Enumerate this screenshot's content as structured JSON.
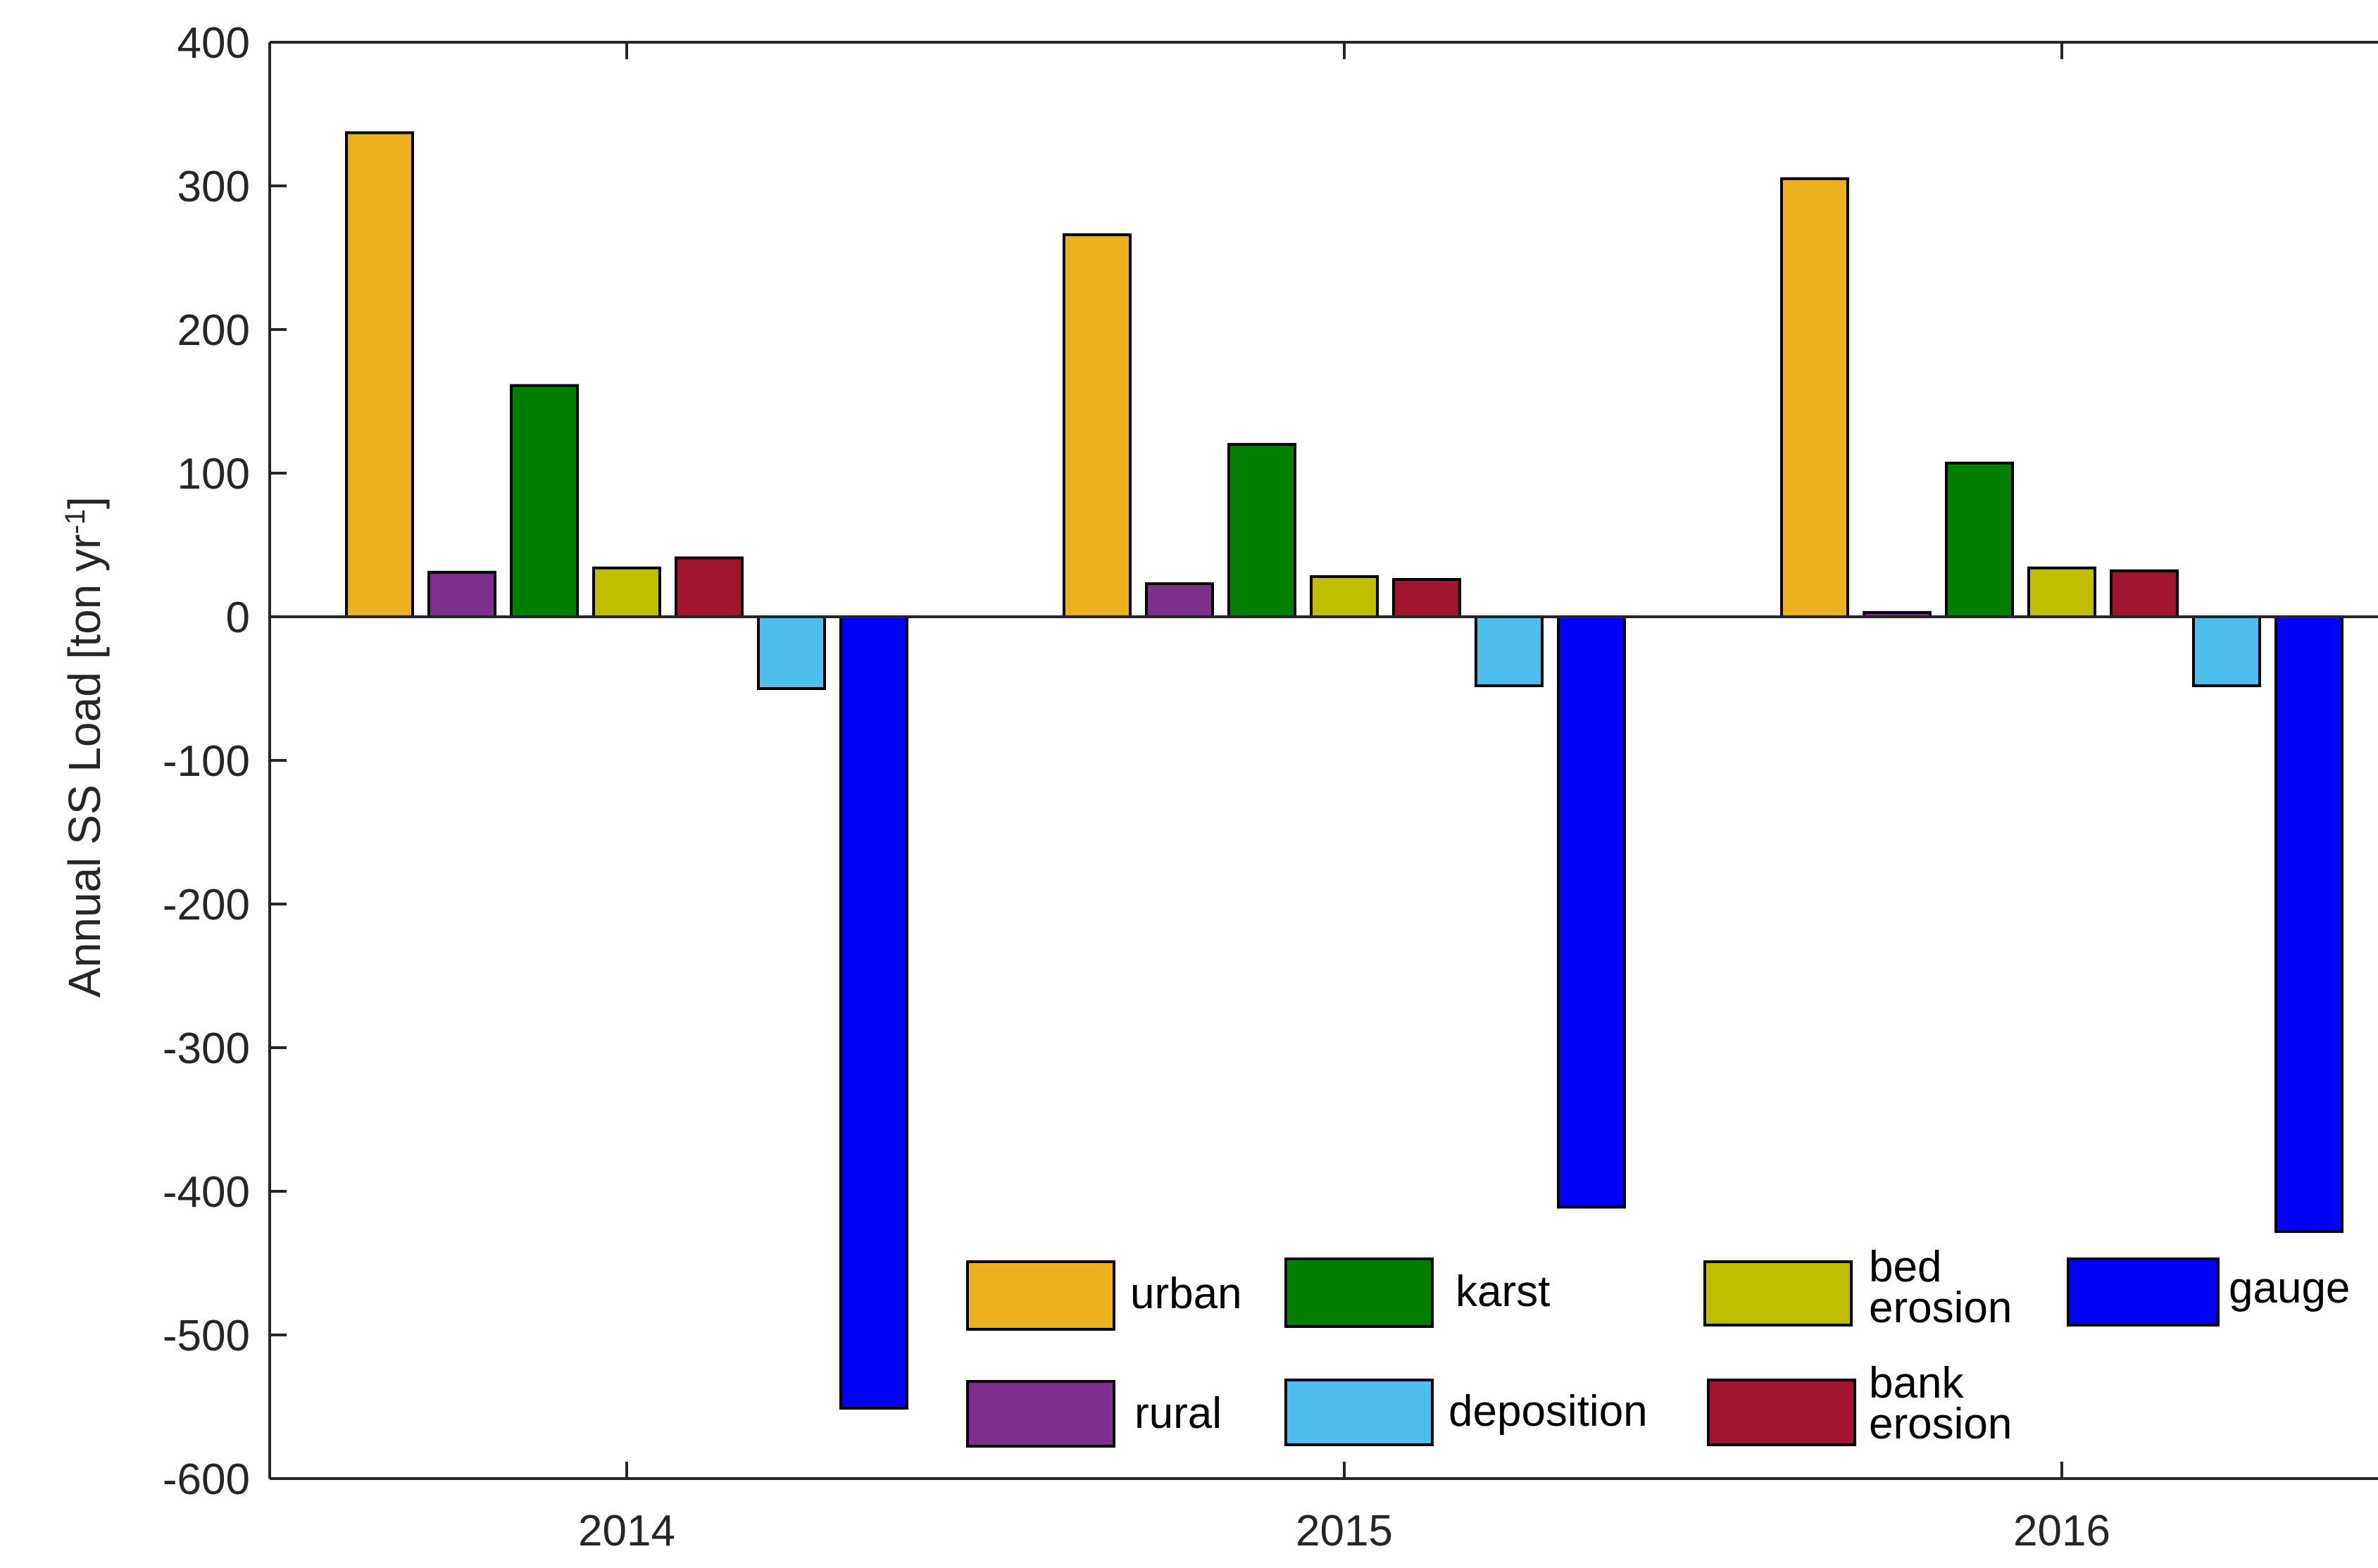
{
  "chart_data": {
    "type": "bar",
    "title": "",
    "xlabel": "",
    "ylabel": "Annual SS Load [ton yr",
    "ylabel_superscript": "-1",
    "ylabel_suffix": "]",
    "ylim": [
      -600,
      400
    ],
    "yticks": [
      "400",
      "300",
      "200",
      "100",
      "0",
      "-100",
      "-200",
      "-300",
      "-400",
      "-500",
      "-600"
    ],
    "categories": [
      "2014",
      "2015",
      "2016"
    ],
    "grid": false,
    "legend_position": "bottom-right",
    "series": [
      {
        "name": "urban",
        "color": "#EDB120",
        "values": [
          337,
          266,
          305
        ]
      },
      {
        "name": "rural",
        "color": "#7E2F8E",
        "values": [
          31,
          23,
          3
        ]
      },
      {
        "name": "karst",
        "color": "#007F00",
        "values": [
          161,
          120,
          107
        ]
      },
      {
        "name": "deposition",
        "color": "#4DBEEE",
        "values": [
          -50,
          -48,
          -48
        ]
      },
      {
        "name": "bed erosion",
        "color": "#BFBF00",
        "values": [
          34,
          28,
          34
        ]
      },
      {
        "name": "bank erosion",
        "color": "#A2142F",
        "values": [
          41,
          26,
          32
        ]
      },
      {
        "name": "gauge",
        "color": "#0000FF",
        "values": [
          -551,
          -411,
          -428
        ]
      }
    ],
    "bar_order": [
      "urban",
      "rural",
      "karst",
      "bed erosion",
      "bank erosion",
      "deposition",
      "gauge"
    ]
  }
}
